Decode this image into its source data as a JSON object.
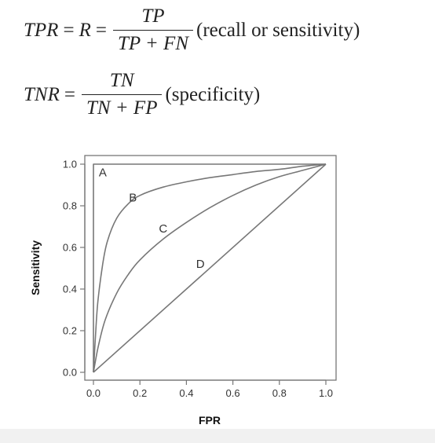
{
  "formulas": {
    "tpr": {
      "lhs": "TPR",
      "mid": "R",
      "numerator": "TP",
      "denominator": "TP + FN",
      "note": "(recall or sensitivity)"
    },
    "tnr": {
      "lhs": "TNR",
      "numerator": "TN",
      "denominator": "TN + FP",
      "note": "(specificity)"
    }
  },
  "chart_data": {
    "type": "line",
    "title": "",
    "xlabel": "FPR",
    "ylabel": "Sensitivity",
    "xlim": [
      0,
      1
    ],
    "ylim": [
      0,
      1
    ],
    "xticks": [
      "0.0",
      "0.2",
      "0.4",
      "0.6",
      "0.8",
      "1.0"
    ],
    "yticks": [
      "0.0",
      "0.2",
      "0.4",
      "0.6",
      "0.8",
      "1.0"
    ],
    "grid": false,
    "line_color": "#777777",
    "series": [
      {
        "name": "A",
        "x": [
          0,
          0,
          1
        ],
        "y": [
          0,
          1,
          1
        ]
      },
      {
        "name": "B",
        "x": [
          0,
          0.01,
          0.02,
          0.04,
          0.06,
          0.1,
          0.15,
          0.2,
          0.3,
          0.4,
          0.5,
          0.6,
          0.7,
          0.8,
          0.9,
          1.0
        ],
        "y": [
          0,
          0.2,
          0.35,
          0.52,
          0.63,
          0.74,
          0.81,
          0.85,
          0.89,
          0.915,
          0.935,
          0.95,
          0.965,
          0.975,
          0.99,
          1.0
        ]
      },
      {
        "name": "C",
        "x": [
          0,
          0.02,
          0.05,
          0.1,
          0.15,
          0.2,
          0.3,
          0.4,
          0.5,
          0.6,
          0.7,
          0.8,
          0.9,
          1.0
        ],
        "y": [
          0,
          0.12,
          0.25,
          0.38,
          0.47,
          0.54,
          0.64,
          0.72,
          0.79,
          0.85,
          0.9,
          0.94,
          0.97,
          1.0
        ]
      },
      {
        "name": "D",
        "x": [
          0,
          1
        ],
        "y": [
          0,
          1
        ]
      }
    ],
    "annotations": [
      {
        "text": "A",
        "x": 0.04,
        "y": 0.96
      },
      {
        "text": "B",
        "x": 0.17,
        "y": 0.84
      },
      {
        "text": "C",
        "x": 0.3,
        "y": 0.69
      },
      {
        "text": "D",
        "x": 0.46,
        "y": 0.52
      }
    ]
  }
}
